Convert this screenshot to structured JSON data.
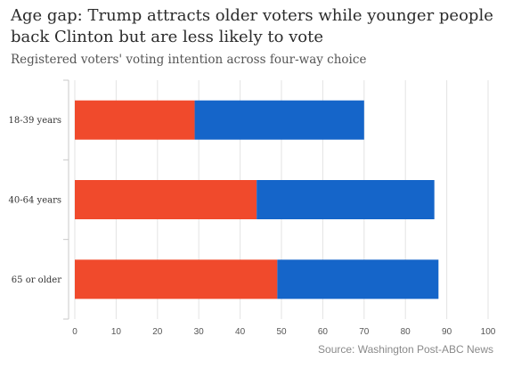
{
  "chart_data": {
    "type": "bar",
    "orientation": "horizontal",
    "stacked": true,
    "title": "Age gap: Trump attracts older voters while younger people back Clinton but are less likely to vote",
    "subtitle": "Registered voters' voting intention across four-way choice",
    "source": "Source: Washington Post-ABC News",
    "categories": [
      "18-39 years",
      "40-64 years",
      "65 or older"
    ],
    "series": [
      {
        "values": [
          29,
          44,
          49
        ],
        "color": "#f04a2c"
      },
      {
        "values": [
          41,
          43,
          39
        ],
        "color": "#1565c9"
      }
    ],
    "xlim": [
      0,
      100
    ],
    "xticks": [
      0,
      10,
      20,
      30,
      40,
      50,
      60,
      70,
      80,
      90,
      100
    ],
    "grid": true,
    "legend": "none"
  }
}
